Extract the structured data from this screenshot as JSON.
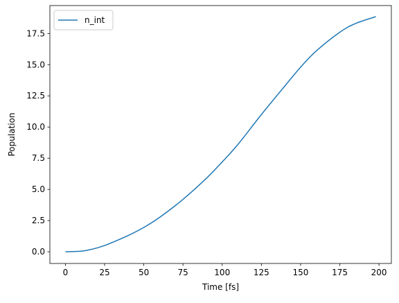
{
  "chart_data": {
    "type": "line",
    "xlabel": "Time [fs]",
    "ylabel": "Population",
    "xlim": [
      -9.9,
      207.9
    ],
    "ylim": [
      -0.94,
      19.74
    ],
    "xticks": [
      0,
      25,
      50,
      75,
      100,
      125,
      150,
      175,
      200
    ],
    "xtick_labels": [
      "0",
      "25",
      "50",
      "75",
      "100",
      "125",
      "150",
      "175",
      "200"
    ],
    "yticks": [
      0.0,
      2.5,
      5.0,
      7.5,
      10.0,
      12.5,
      15.0,
      17.5
    ],
    "ytick_labels": [
      "0.0",
      "2.5",
      "5.0",
      "7.5",
      "10.0",
      "12.5",
      "15.0",
      "17.5"
    ],
    "grid": false,
    "legend_position": "top-left",
    "series": [
      {
        "name": "n_int",
        "color": "#1f77b4",
        "x": [
          0,
          10,
          15,
          20,
          25,
          30,
          40,
          50,
          60,
          75,
          90,
          100,
          110,
          125,
          140,
          150,
          160,
          175,
          185,
          198
        ],
        "y": [
          0.0,
          0.05,
          0.15,
          0.3,
          0.5,
          0.75,
          1.3,
          1.95,
          2.75,
          4.2,
          5.9,
          7.2,
          8.6,
          11.0,
          13.3,
          14.8,
          16.1,
          17.6,
          18.3,
          18.85
        ]
      }
    ]
  }
}
